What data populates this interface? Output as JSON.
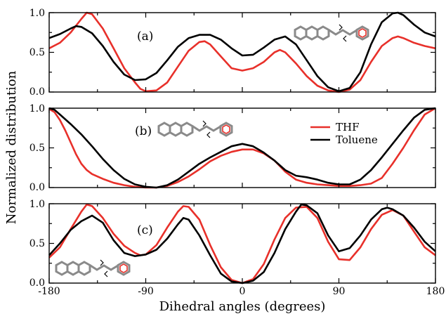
{
  "chart_data": {
    "type": "line",
    "xlabel": "Dihedral angles (degrees)",
    "ylabel": "Normalized distribution",
    "xlim": [
      -180,
      180
    ],
    "x_ticks": [
      "-180",
      "-90",
      "0",
      "90",
      "180"
    ],
    "colors": {
      "THF": "#e8302a",
      "Toluene": "#000000"
    },
    "legend": {
      "placement": "right, inside panel (b)",
      "entries": [
        "THF",
        "Toluene"
      ]
    },
    "panels": [
      {
        "label": "(a)",
        "ylim": [
          0,
          1
        ],
        "y_ticks": [
          "1.0",
          "0.5",
          "0.0"
        ],
        "inset": "molecule structure with dihedral arrow",
        "series": [
          {
            "name": "THF",
            "points": [
              [
                -180,
                0.55
              ],
              [
                -170,
                0.62
              ],
              [
                -160,
                0.75
              ],
              [
                -150,
                0.92
              ],
              [
                -145,
                1.0
              ],
              [
                -140,
                0.98
              ],
              [
                -130,
                0.8
              ],
              [
                -120,
                0.55
              ],
              [
                -110,
                0.3
              ],
              [
                -100,
                0.12
              ],
              [
                -95,
                0.04
              ],
              [
                -90,
                0.01
              ],
              [
                -80,
                0.02
              ],
              [
                -70,
                0.12
              ],
              [
                -60,
                0.32
              ],
              [
                -50,
                0.52
              ],
              [
                -40,
                0.63
              ],
              [
                -35,
                0.64
              ],
              [
                -30,
                0.6
              ],
              [
                -20,
                0.45
              ],
              [
                -10,
                0.3
              ],
              [
                0,
                0.27
              ],
              [
                10,
                0.3
              ],
              [
                20,
                0.38
              ],
              [
                30,
                0.5
              ],
              [
                35,
                0.53
              ],
              [
                40,
                0.5
              ],
              [
                50,
                0.36
              ],
              [
                60,
                0.2
              ],
              [
                70,
                0.08
              ],
              [
                80,
                0.02
              ],
              [
                90,
                0.0
              ],
              [
                100,
                0.03
              ],
              [
                110,
                0.15
              ],
              [
                120,
                0.38
              ],
              [
                130,
                0.58
              ],
              [
                140,
                0.68
              ],
              [
                145,
                0.7
              ],
              [
                150,
                0.68
              ],
              [
                160,
                0.62
              ],
              [
                170,
                0.58
              ],
              [
                180,
                0.55
              ]
            ]
          },
          {
            "name": "Toluene",
            "points": [
              [
                -180,
                0.68
              ],
              [
                -170,
                0.73
              ],
              [
                -160,
                0.8
              ],
              [
                -155,
                0.83
              ],
              [
                -150,
                0.82
              ],
              [
                -140,
                0.74
              ],
              [
                -130,
                0.58
              ],
              [
                -120,
                0.38
              ],
              [
                -110,
                0.22
              ],
              [
                -100,
                0.15
              ],
              [
                -90,
                0.16
              ],
              [
                -80,
                0.24
              ],
              [
                -70,
                0.4
              ],
              [
                -60,
                0.57
              ],
              [
                -50,
                0.68
              ],
              [
                -40,
                0.72
              ],
              [
                -30,
                0.72
              ],
              [
                -20,
                0.66
              ],
              [
                -10,
                0.55
              ],
              [
                0,
                0.46
              ],
              [
                10,
                0.47
              ],
              [
                20,
                0.56
              ],
              [
                30,
                0.66
              ],
              [
                40,
                0.7
              ],
              [
                50,
                0.6
              ],
              [
                60,
                0.4
              ],
              [
                70,
                0.2
              ],
              [
                80,
                0.06
              ],
              [
                90,
                0.01
              ],
              [
                100,
                0.05
              ],
              [
                110,
                0.25
              ],
              [
                120,
                0.6
              ],
              [
                130,
                0.88
              ],
              [
                140,
                0.99
              ],
              [
                145,
                1.0
              ],
              [
                150,
                0.97
              ],
              [
                160,
                0.85
              ],
              [
                170,
                0.75
              ],
              [
                180,
                0.7
              ]
            ]
          }
        ]
      },
      {
        "label": "(b)",
        "ylim": [
          0,
          1
        ],
        "y_ticks": [
          "1.0",
          "0.5",
          "0.0"
        ],
        "inset": "molecule structure with dihedral arrow",
        "series": [
          {
            "name": "THF",
            "points": [
              [
                -180,
                0.99
              ],
              [
                -175,
                0.95
              ],
              [
                -170,
                0.85
              ],
              [
                -165,
                0.72
              ],
              [
                -160,
                0.57
              ],
              [
                -155,
                0.42
              ],
              [
                -150,
                0.3
              ],
              [
                -145,
                0.22
              ],
              [
                -140,
                0.17
              ],
              [
                -130,
                0.11
              ],
              [
                -120,
                0.06
              ],
              [
                -110,
                0.03
              ],
              [
                -100,
                0.01
              ],
              [
                -90,
                0.0
              ],
              [
                -80,
                0.0
              ],
              [
                -70,
                0.02
              ],
              [
                -60,
                0.07
              ],
              [
                -50,
                0.14
              ],
              [
                -40,
                0.23
              ],
              [
                -30,
                0.33
              ],
              [
                -20,
                0.4
              ],
              [
                -10,
                0.45
              ],
              [
                0,
                0.48
              ],
              [
                10,
                0.48
              ],
              [
                20,
                0.43
              ],
              [
                30,
                0.34
              ],
              [
                40,
                0.2
              ],
              [
                50,
                0.1
              ],
              [
                60,
                0.06
              ],
              [
                70,
                0.04
              ],
              [
                80,
                0.03
              ],
              [
                90,
                0.02
              ],
              [
                100,
                0.02
              ],
              [
                110,
                0.03
              ],
              [
                120,
                0.05
              ],
              [
                130,
                0.12
              ],
              [
                140,
                0.3
              ],
              [
                150,
                0.5
              ],
              [
                160,
                0.72
              ],
              [
                170,
                0.92
              ],
              [
                180,
                1.0
              ]
            ]
          },
          {
            "name": "Toluene",
            "points": [
              [
                -180,
                1.0
              ],
              [
                -175,
                0.98
              ],
              [
                -170,
                0.92
              ],
              [
                -160,
                0.8
              ],
              [
                -150,
                0.67
              ],
              [
                -140,
                0.52
              ],
              [
                -130,
                0.36
              ],
              [
                -120,
                0.22
              ],
              [
                -110,
                0.11
              ],
              [
                -100,
                0.04
              ],
              [
                -90,
                0.01
              ],
              [
                -80,
                0.0
              ],
              [
                -70,
                0.03
              ],
              [
                -60,
                0.1
              ],
              [
                -50,
                0.2
              ],
              [
                -40,
                0.3
              ],
              [
                -30,
                0.38
              ],
              [
                -20,
                0.45
              ],
              [
                -10,
                0.52
              ],
              [
                0,
                0.55
              ],
              [
                10,
                0.52
              ],
              [
                20,
                0.44
              ],
              [
                30,
                0.34
              ],
              [
                40,
                0.22
              ],
              [
                50,
                0.15
              ],
              [
                60,
                0.13
              ],
              [
                70,
                0.1
              ],
              [
                80,
                0.06
              ],
              [
                90,
                0.04
              ],
              [
                100,
                0.04
              ],
              [
                110,
                0.1
              ],
              [
                120,
                0.22
              ],
              [
                130,
                0.38
              ],
              [
                140,
                0.55
              ],
              [
                150,
                0.72
              ],
              [
                160,
                0.88
              ],
              [
                170,
                0.98
              ],
              [
                180,
                1.0
              ]
            ]
          }
        ]
      },
      {
        "label": "(c)",
        "ylim": [
          0,
          1
        ],
        "y_ticks": [
          "1.0",
          "0.5",
          "0.0"
        ],
        "inset": "molecule structure with dihedral arrow",
        "series": [
          {
            "name": "THF",
            "points": [
              [
                -180,
                0.32
              ],
              [
                -170,
                0.45
              ],
              [
                -160,
                0.68
              ],
              [
                -150,
                0.9
              ],
              [
                -145,
                0.99
              ],
              [
                -140,
                0.97
              ],
              [
                -130,
                0.82
              ],
              [
                -120,
                0.62
              ],
              [
                -110,
                0.47
              ],
              [
                -100,
                0.38
              ],
              [
                -95,
                0.35
              ],
              [
                -90,
                0.36
              ],
              [
                -80,
                0.48
              ],
              [
                -70,
                0.7
              ],
              [
                -60,
                0.9
              ],
              [
                -55,
                0.97
              ],
              [
                -50,
                0.96
              ],
              [
                -40,
                0.8
              ],
              [
                -30,
                0.48
              ],
              [
                -20,
                0.2
              ],
              [
                -10,
                0.04
              ],
              [
                0,
                0.0
              ],
              [
                10,
                0.05
              ],
              [
                20,
                0.24
              ],
              [
                30,
                0.55
              ],
              [
                40,
                0.82
              ],
              [
                50,
                0.95
              ],
              [
                60,
                0.96
              ],
              [
                70,
                0.82
              ],
              [
                80,
                0.52
              ],
              [
                90,
                0.3
              ],
              [
                100,
                0.29
              ],
              [
                110,
                0.45
              ],
              [
                120,
                0.68
              ],
              [
                130,
                0.86
              ],
              [
                140,
                0.92
              ],
              [
                150,
                0.85
              ],
              [
                160,
                0.65
              ],
              [
                170,
                0.45
              ],
              [
                180,
                0.35
              ]
            ]
          },
          {
            "name": "Toluene",
            "points": [
              [
                -180,
                0.35
              ],
              [
                -170,
                0.5
              ],
              [
                -160,
                0.67
              ],
              [
                -150,
                0.78
              ],
              [
                -140,
                0.85
              ],
              [
                -130,
                0.76
              ],
              [
                -120,
                0.54
              ],
              [
                -110,
                0.38
              ],
              [
                -100,
                0.34
              ],
              [
                -90,
                0.36
              ],
              [
                -80,
                0.42
              ],
              [
                -70,
                0.56
              ],
              [
                -60,
                0.74
              ],
              [
                -55,
                0.82
              ],
              [
                -50,
                0.8
              ],
              [
                -40,
                0.6
              ],
              [
                -30,
                0.35
              ],
              [
                -20,
                0.12
              ],
              [
                -10,
                0.02
              ],
              [
                0,
                0.0
              ],
              [
                10,
                0.03
              ],
              [
                20,
                0.14
              ],
              [
                30,
                0.38
              ],
              [
                40,
                0.68
              ],
              [
                50,
                0.9
              ],
              [
                55,
                0.99
              ],
              [
                60,
                0.98
              ],
              [
                70,
                0.88
              ],
              [
                80,
                0.6
              ],
              [
                90,
                0.4
              ],
              [
                100,
                0.44
              ],
              [
                110,
                0.6
              ],
              [
                120,
                0.8
              ],
              [
                130,
                0.93
              ],
              [
                135,
                0.95
              ],
              [
                140,
                0.93
              ],
              [
                150,
                0.85
              ],
              [
                160,
                0.7
              ],
              [
                170,
                0.52
              ],
              [
                180,
                0.4
              ]
            ]
          }
        ]
      }
    ]
  }
}
